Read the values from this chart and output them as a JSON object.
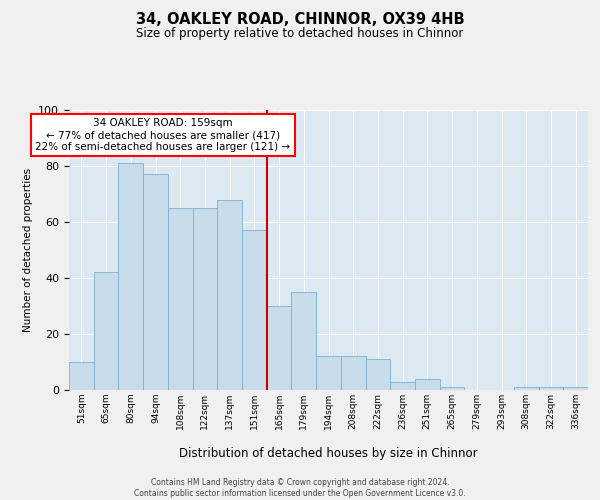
{
  "title": "34, OAKLEY ROAD, CHINNOR, OX39 4HB",
  "subtitle": "Size of property relative to detached houses in Chinnor",
  "xlabel": "Distribution of detached houses by size in Chinnor",
  "ylabel": "Number of detached properties",
  "categories": [
    "51sqm",
    "65sqm",
    "80sqm",
    "94sqm",
    "108sqm",
    "122sqm",
    "137sqm",
    "151sqm",
    "165sqm",
    "179sqm",
    "194sqm",
    "208sqm",
    "222sqm",
    "236sqm",
    "251sqm",
    "265sqm",
    "279sqm",
    "293sqm",
    "308sqm",
    "322sqm",
    "336sqm"
  ],
  "values": [
    10,
    42,
    81,
    77,
    65,
    65,
    68,
    57,
    30,
    35,
    12,
    12,
    11,
    3,
    4,
    1,
    0,
    0,
    1,
    1,
    1
  ],
  "bar_color": "#c9dcea",
  "bar_edge_color": "#7ab0d4",
  "vline_x": 7.5,
  "vline_color": "#cc0000",
  "annotation_text": "34 OAKLEY ROAD: 159sqm\n← 77% of detached houses are smaller (417)\n22% of semi-detached houses are larger (121) →",
  "ylim_max": 100,
  "plot_bg_color": "#dce8f2",
  "fig_bg_color": "#f0f0f0",
  "grid_color": "#ffffff",
  "footer_line1": "Contains HM Land Registry data © Crown copyright and database right 2024.",
  "footer_line2": "Contains public sector information licensed under the Open Government Licence v3.0."
}
